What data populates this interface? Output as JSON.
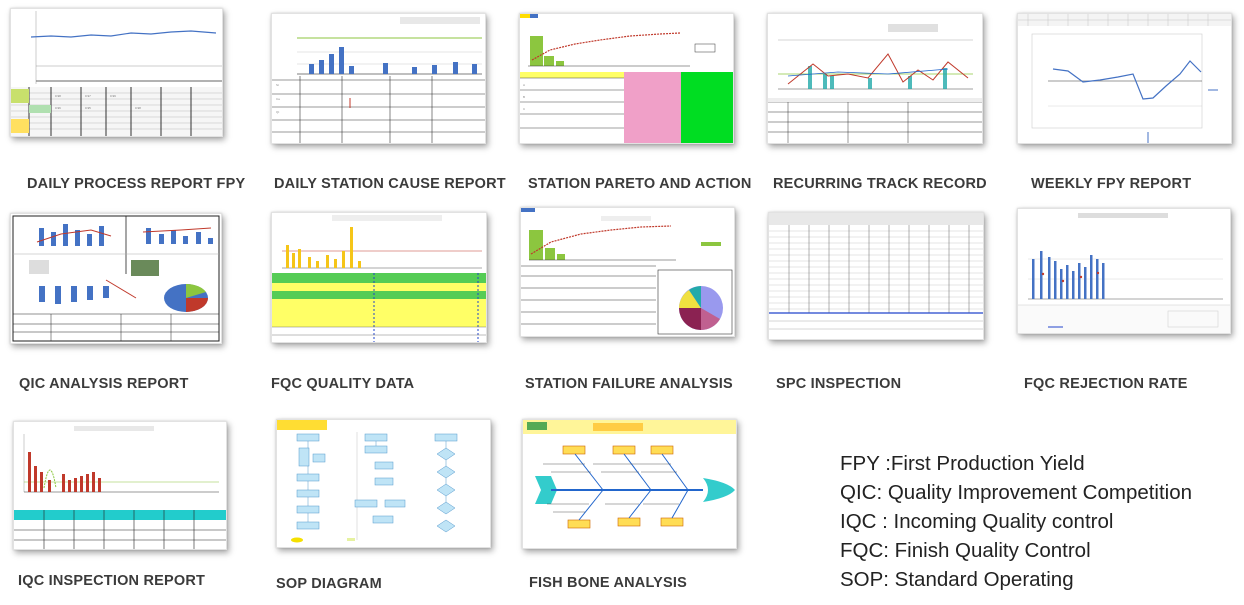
{
  "reports": [
    {
      "id": "daily-process-report-fpy",
      "title": "DAILY PROCESS REPORT FPY"
    },
    {
      "id": "daily-station-cause-report",
      "title": "DAILY STATION CAUSE REPORT"
    },
    {
      "id": "station-pareto-and-action",
      "title": "STATION PARETO AND ACTION"
    },
    {
      "id": "recurring-track-record",
      "title": "RECURRING TRACK RECORD"
    },
    {
      "id": "weekly-fpy-report",
      "title": "WEEKLY FPY REPORT"
    },
    {
      "id": "qic-analysis-report",
      "title": "QIC ANALYSIS REPORT"
    },
    {
      "id": "fqc-quality-data",
      "title": "FQC QUALITY DATA"
    },
    {
      "id": "station-failure-analysis",
      "title": "STATION FAILURE ANALYSIS"
    },
    {
      "id": "spc-inspection",
      "title": "SPC INSPECTION"
    },
    {
      "id": "fqc-rejection-rate",
      "title": "FQC REJECTION RATE"
    },
    {
      "id": "iqc-inspection-report",
      "title": "IQC INSPECTION REPORT"
    },
    {
      "id": "sop-diagram",
      "title": "SOP DIAGRAM"
    },
    {
      "id": "fish-bone-analysis",
      "title": "FISH BONE ANALYSIS"
    }
  ],
  "glossary": [
    "FPY :First Production Yield",
    "QIC: Quality Improvement Competition",
    "IQC : Incoming Quality control",
    "FQC: Finish Quality Control",
    "SOP: Standard Operating"
  ],
  "colors": {
    "caption": "#3b3b3b",
    "chart_blue": "#4472c4",
    "chart_red": "#c0392b",
    "bar_green": "#8cc63f",
    "highlight_yellow": "#ffff66",
    "table_green": "#55cc55",
    "pink": "#f0a0c8",
    "bright_green": "#00dd22",
    "teal": "#22cccc",
    "fishbone_teal": "#33cccc",
    "fishbone_yellow": "#fff599"
  }
}
